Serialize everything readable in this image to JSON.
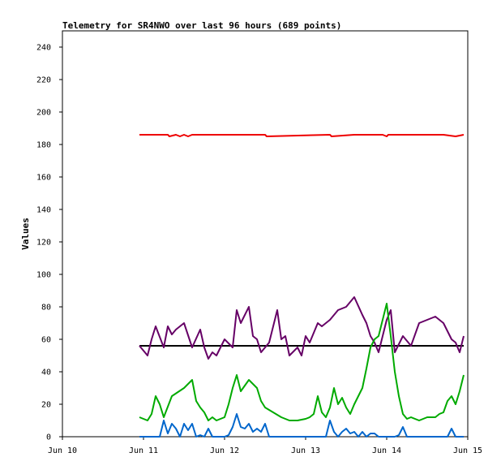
{
  "chart_data": {
    "type": "line",
    "title": "Telemetry for SR4NWO over last 96 hours (689 points)",
    "xlabel": "",
    "ylabel": "Values",
    "xlim": [
      10,
      15
    ],
    "ylim": [
      0,
      250
    ],
    "x_ticks": [
      {
        "value": 10,
        "label": "Jun 10"
      },
      {
        "value": 11,
        "label": "Jun 11"
      },
      {
        "value": 12,
        "label": "Jun 12"
      },
      {
        "value": 13,
        "label": "Jun 13"
      },
      {
        "value": 14,
        "label": "Jun 14"
      },
      {
        "value": 15,
        "label": "Jun 15"
      }
    ],
    "y_ticks": [
      0,
      20,
      40,
      60,
      80,
      100,
      120,
      140,
      160,
      180,
      200,
      220,
      240
    ],
    "grid": false,
    "legend": "none",
    "series": [
      {
        "color": "#ee0000",
        "x": [
          10.95,
          11.3,
          11.32,
          11.4,
          11.45,
          11.5,
          11.55,
          11.6,
          12.2,
          12.5,
          12.52,
          13.3,
          13.32,
          13.6,
          13.8,
          13.95,
          14.0,
          14.02,
          14.3,
          14.7,
          14.85,
          14.95
        ],
        "y": [
          186,
          186,
          185,
          186,
          185,
          186,
          185,
          186,
          186,
          186,
          185,
          186,
          185,
          186,
          186,
          186,
          185,
          186,
          186,
          186,
          185,
          186
        ]
      },
      {
        "color": "#000000",
        "x": [
          10.95,
          14.95
        ],
        "y": [
          56,
          56
        ]
      },
      {
        "color": "#660066",
        "x": [
          10.95,
          11.05,
          11.1,
          11.15,
          11.25,
          11.3,
          11.35,
          11.4,
          11.5,
          11.6,
          11.7,
          11.75,
          11.8,
          11.85,
          11.9,
          12.0,
          12.1,
          12.15,
          12.2,
          12.3,
          12.35,
          12.4,
          12.45,
          12.55,
          12.6,
          12.65,
          12.7,
          12.75,
          12.8,
          12.9,
          12.95,
          13.0,
          13.05,
          13.15,
          13.2,
          13.3,
          13.4,
          13.5,
          13.6,
          13.7,
          13.75,
          13.8,
          13.85,
          13.9,
          14.0,
          14.05,
          14.1,
          14.2,
          14.3,
          14.4,
          14.5,
          14.6,
          14.7,
          14.8,
          14.85,
          14.9,
          14.95
        ],
        "y": [
          56,
          50,
          60,
          68,
          55,
          68,
          63,
          66,
          70,
          55,
          66,
          55,
          48,
          52,
          50,
          60,
          55,
          78,
          70,
          80,
          62,
          60,
          52,
          58,
          68,
          78,
          60,
          62,
          50,
          55,
          50,
          62,
          58,
          70,
          68,
          72,
          78,
          80,
          86,
          75,
          70,
          62,
          58,
          52,
          72,
          78,
          52,
          62,
          56,
          70,
          72,
          74,
          70,
          60,
          58,
          52,
          62
        ]
      },
      {
        "color": "#00aa00",
        "x": [
          10.95,
          11.05,
          11.1,
          11.15,
          11.2,
          11.25,
          11.35,
          11.5,
          11.6,
          11.65,
          11.7,
          11.75,
          11.8,
          11.85,
          11.9,
          12.0,
          12.05,
          12.1,
          12.15,
          12.2,
          12.3,
          12.4,
          12.45,
          12.5,
          12.6,
          12.7,
          12.8,
          12.9,
          13.0,
          13.05,
          13.1,
          13.15,
          13.2,
          13.25,
          13.3,
          13.35,
          13.4,
          13.45,
          13.5,
          13.55,
          13.6,
          13.7,
          13.75,
          13.8,
          13.85,
          13.9,
          14.0,
          14.05,
          14.1,
          14.15,
          14.2,
          14.25,
          14.3,
          14.4,
          14.5,
          14.6,
          14.65,
          14.7,
          14.75,
          14.8,
          14.85,
          14.9,
          14.95
        ],
        "y": [
          12,
          10,
          14,
          25,
          20,
          12,
          25,
          30,
          35,
          22,
          18,
          15,
          10,
          12,
          10,
          12,
          20,
          30,
          38,
          28,
          35,
          30,
          22,
          18,
          15,
          12,
          10,
          10,
          11,
          12,
          14,
          25,
          15,
          12,
          18,
          30,
          20,
          24,
          18,
          14,
          20,
          30,
          42,
          55,
          60,
          62,
          82,
          62,
          40,
          25,
          14,
          11,
          12,
          10,
          12,
          12,
          14,
          15,
          22,
          25,
          20,
          28,
          38
        ]
      },
      {
        "color": "#0066cc",
        "x": [
          10.95,
          11.2,
          11.25,
          11.3,
          11.35,
          11.4,
          11.45,
          11.5,
          11.55,
          11.6,
          11.65,
          11.7,
          11.75,
          11.8,
          11.85,
          11.9,
          12.0,
          12.05,
          12.1,
          12.15,
          12.2,
          12.25,
          12.3,
          12.35,
          12.4,
          12.45,
          12.5,
          12.55,
          12.6,
          12.65,
          13.0,
          13.2,
          13.25,
          13.3,
          13.35,
          13.4,
          13.45,
          13.5,
          13.55,
          13.6,
          13.65,
          13.7,
          13.75,
          13.8,
          13.85,
          13.9,
          14.0,
          14.05,
          14.1,
          14.15,
          14.2,
          14.25,
          14.3,
          14.5,
          14.7,
          14.75,
          14.8,
          14.85,
          14.95
        ],
        "y": [
          0,
          0,
          10,
          2,
          8,
          5,
          0,
          8,
          4,
          8,
          0,
          1,
          0,
          5,
          0,
          0,
          0,
          1,
          6,
          14,
          6,
          5,
          8,
          3,
          5,
          3,
          8,
          0,
          0,
          0,
          0,
          0,
          0,
          10,
          3,
          0,
          3,
          5,
          2,
          3,
          0,
          3,
          0,
          2,
          2,
          0,
          0,
          0,
          0,
          1,
          6,
          0,
          0,
          0,
          0,
          0,
          5,
          0,
          0
        ]
      }
    ]
  }
}
